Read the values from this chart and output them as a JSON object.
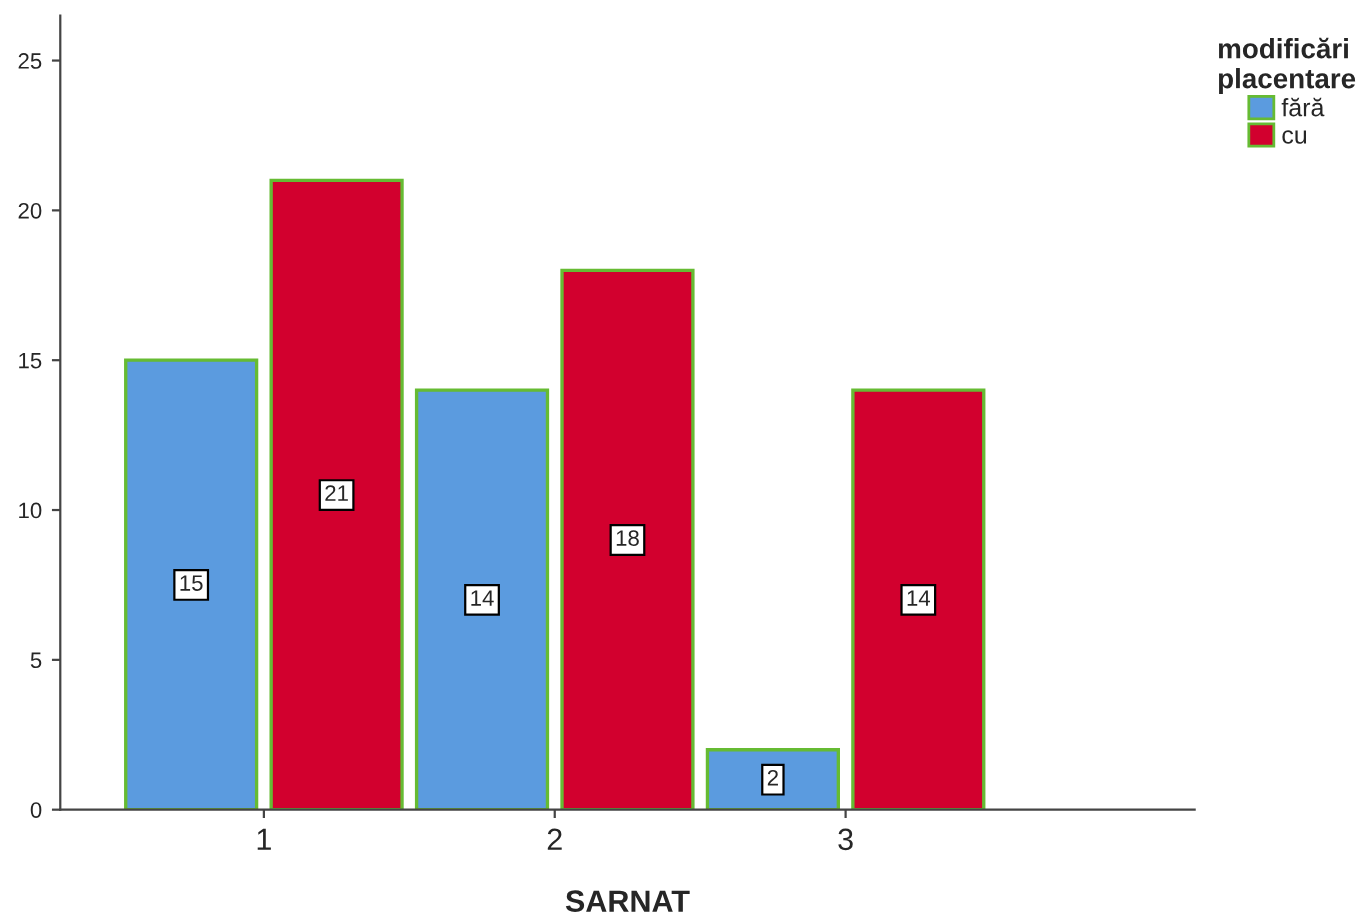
{
  "chart_data": {
    "type": "bar",
    "xlabel": "SARNAT",
    "legend_title": "modificări\nplacentare",
    "categories": [
      "1",
      "2",
      "3"
    ],
    "series": [
      {
        "name": "fără",
        "color": "#5b9bdf",
        "values": [
          15,
          14,
          2
        ]
      },
      {
        "name": "cu",
        "color": "#d2002e",
        "values": [
          21,
          18,
          14
        ]
      }
    ],
    "ylim": [
      0,
      26.5
    ],
    "yticks": [
      0,
      5,
      10,
      15,
      20,
      25
    ],
    "data_labels": true,
    "legend": "top right",
    "grid": false
  }
}
